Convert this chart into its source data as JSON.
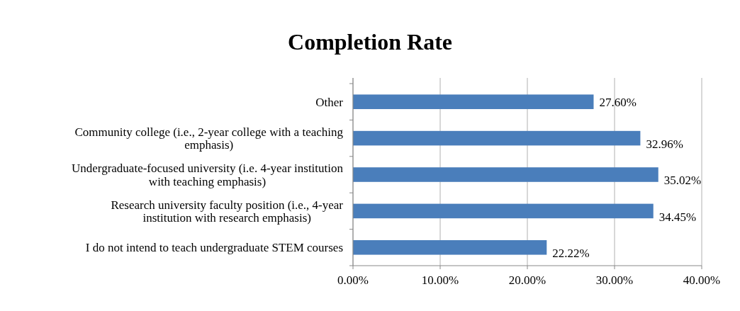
{
  "chart_data": {
    "type": "bar",
    "orientation": "horizontal",
    "title": "Completion Rate",
    "categories": [
      "Other",
      "Community college (i.e., 2-year college with a teaching emphasis)",
      "Undergraduate-focused university (i.e. 4-year institution with teaching emphasis)",
      "Research university faculty position (i.e., 4-year institution with research emphasis)",
      "I do not intend to teach undergraduate STEM courses"
    ],
    "values": [
      27.6,
      32.96,
      35.02,
      34.45,
      22.22
    ],
    "value_labels": [
      "27.60%",
      "32.96%",
      "35.02%",
      "34.45%",
      "22.22%"
    ],
    "color": "#4a7ebb",
    "xlim": [
      0,
      40
    ],
    "xticks": [
      {
        "value": 0,
        "label": "0.00%"
      },
      {
        "value": 10,
        "label": "10.00%"
      },
      {
        "value": 20,
        "label": "20.00%"
      },
      {
        "value": 30,
        "label": "30.00%"
      },
      {
        "value": 40,
        "label": "40.00%"
      }
    ],
    "grid": "x"
  }
}
